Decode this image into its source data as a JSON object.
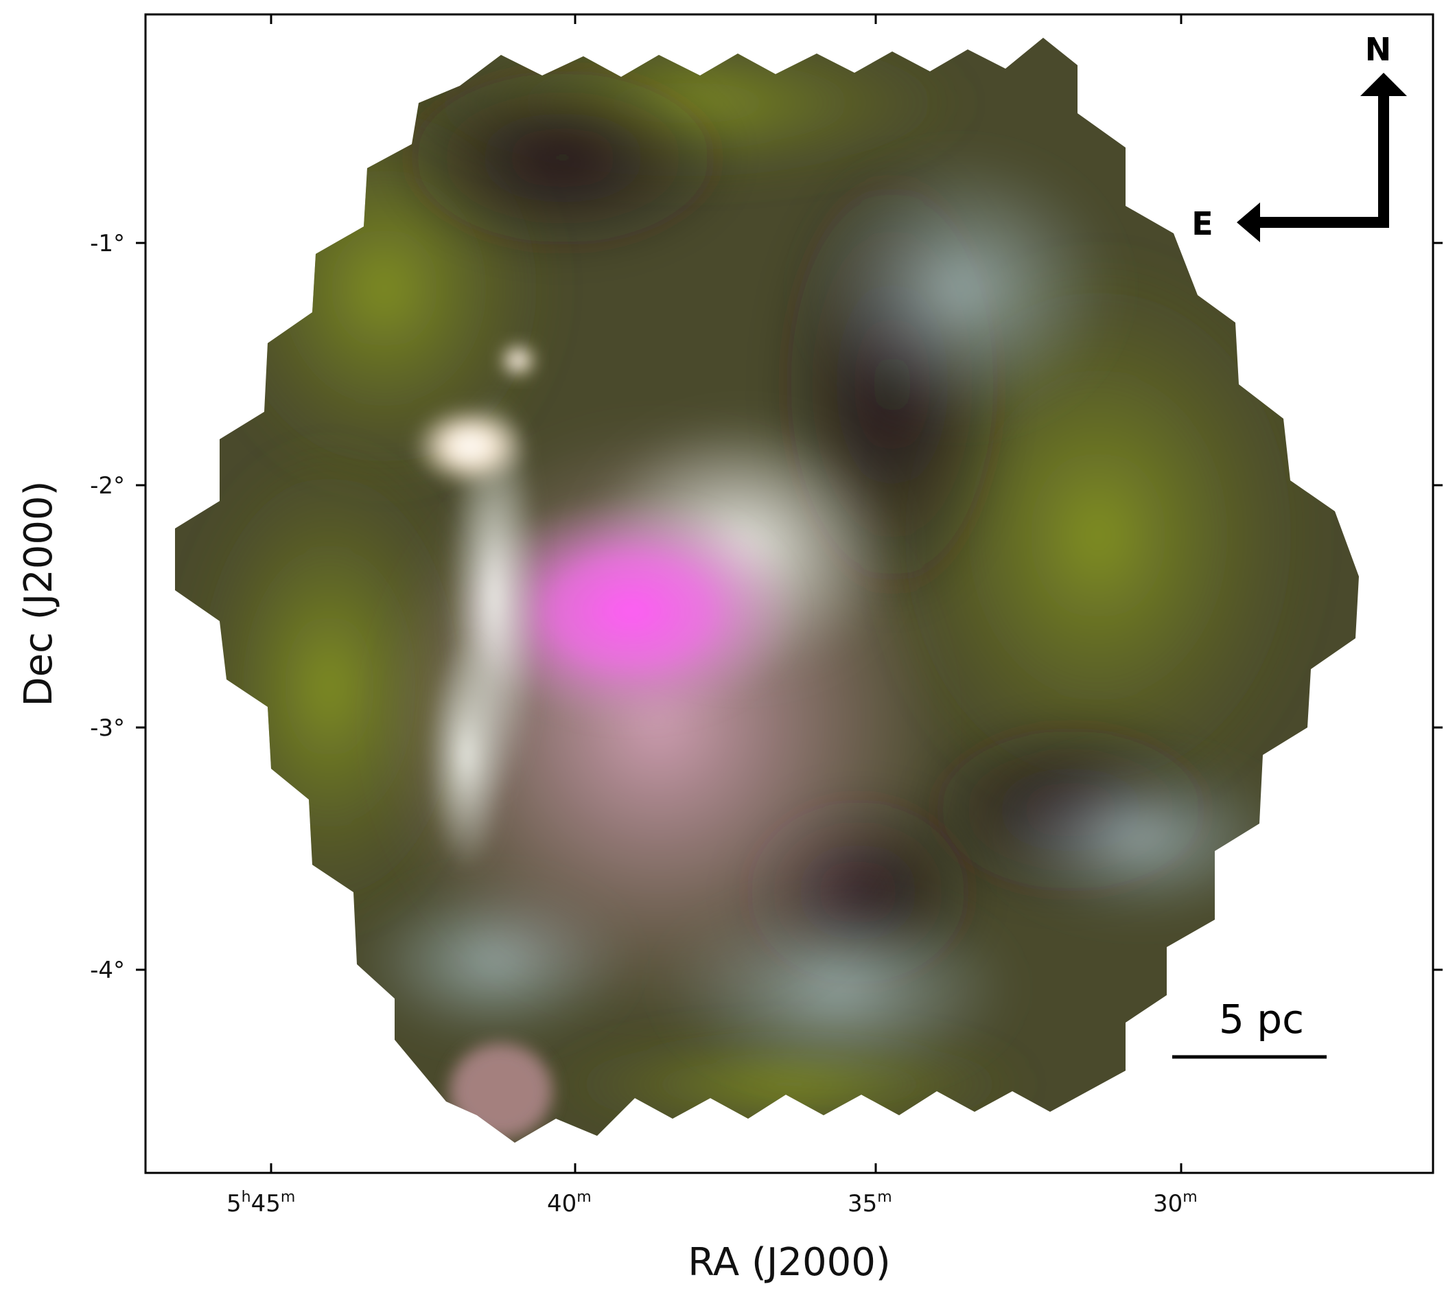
{
  "axes": {
    "xlabel": "RA (J2000)",
    "ylabel": "Dec (J2000)",
    "x_ticks": [
      {
        "label_main": "5",
        "label_unit": "h",
        "label_num": "45",
        "label_suffix": "m"
      },
      {
        "label_main": "",
        "label_unit": "",
        "label_num": "40",
        "label_suffix": "m"
      },
      {
        "label_main": "",
        "label_unit": "",
        "label_num": "35",
        "label_suffix": "m"
      },
      {
        "label_main": "",
        "label_unit": "",
        "label_num": "30",
        "label_suffix": "m"
      }
    ],
    "y_ticks": [
      "-1°",
      "-2°",
      "-3°",
      "-4°"
    ]
  },
  "compass": {
    "north_label": "N",
    "east_label": "E"
  },
  "scale_bar": {
    "label": "5 pc"
  },
  "colors": {
    "magenta_core": "#f060e8",
    "green_dust": "#6e7a1e",
    "teal_wisps": "#9fb4b6",
    "bright_nebula": "#fff1dc",
    "dark_void": "#2a1e22"
  }
}
